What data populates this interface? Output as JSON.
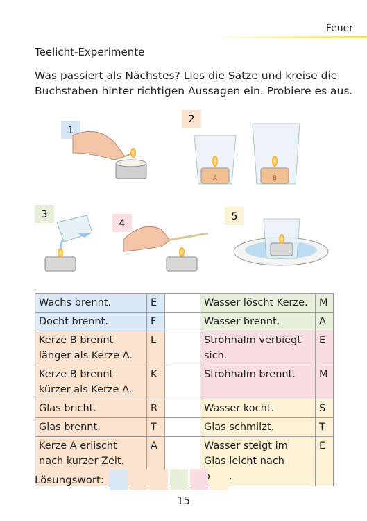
{
  "header": {
    "section": "Feuer"
  },
  "title": "Teelicht-Experimente",
  "instructions": [
    "Was passiert als Nächstes? Lies die Sätze und kreise die",
    "Buchstaben hinter richtigen Aussagen ein. Probiere es aus."
  ],
  "figures": [
    {
      "number": "1"
    },
    {
      "number": "2",
      "candles": [
        "A",
        "B"
      ]
    },
    {
      "number": "3"
    },
    {
      "number": "4"
    },
    {
      "number": "5"
    }
  ],
  "table": {
    "rows": [
      [
        "Wachs brennt.",
        "E",
        "Wasser löscht Kerze.",
        "M"
      ],
      [
        "Docht brennt.",
        "F",
        "Wasser brennt.",
        "A"
      ],
      [
        "Kerze B brennt länger als Kerze A.",
        "L",
        "Strohhalm verbiegt sich.",
        "E"
      ],
      [
        "Kerze B brennt kürzer als Kerze A.",
        "K",
        "Strohhalm brennt.",
        "M"
      ],
      [
        "Glas bricht.",
        "R",
        "Wasser kocht.",
        "S"
      ],
      [
        "Glas brennt.",
        "T",
        "Glas schmilzt.",
        "T"
      ],
      [
        "Kerze A erlischt nach kurzer Zeit.",
        "A",
        "Wasser steigt im Glas leicht nach oben.",
        "E"
      ]
    ]
  },
  "solution_label": "Lösungswort:",
  "page_number": "15"
}
